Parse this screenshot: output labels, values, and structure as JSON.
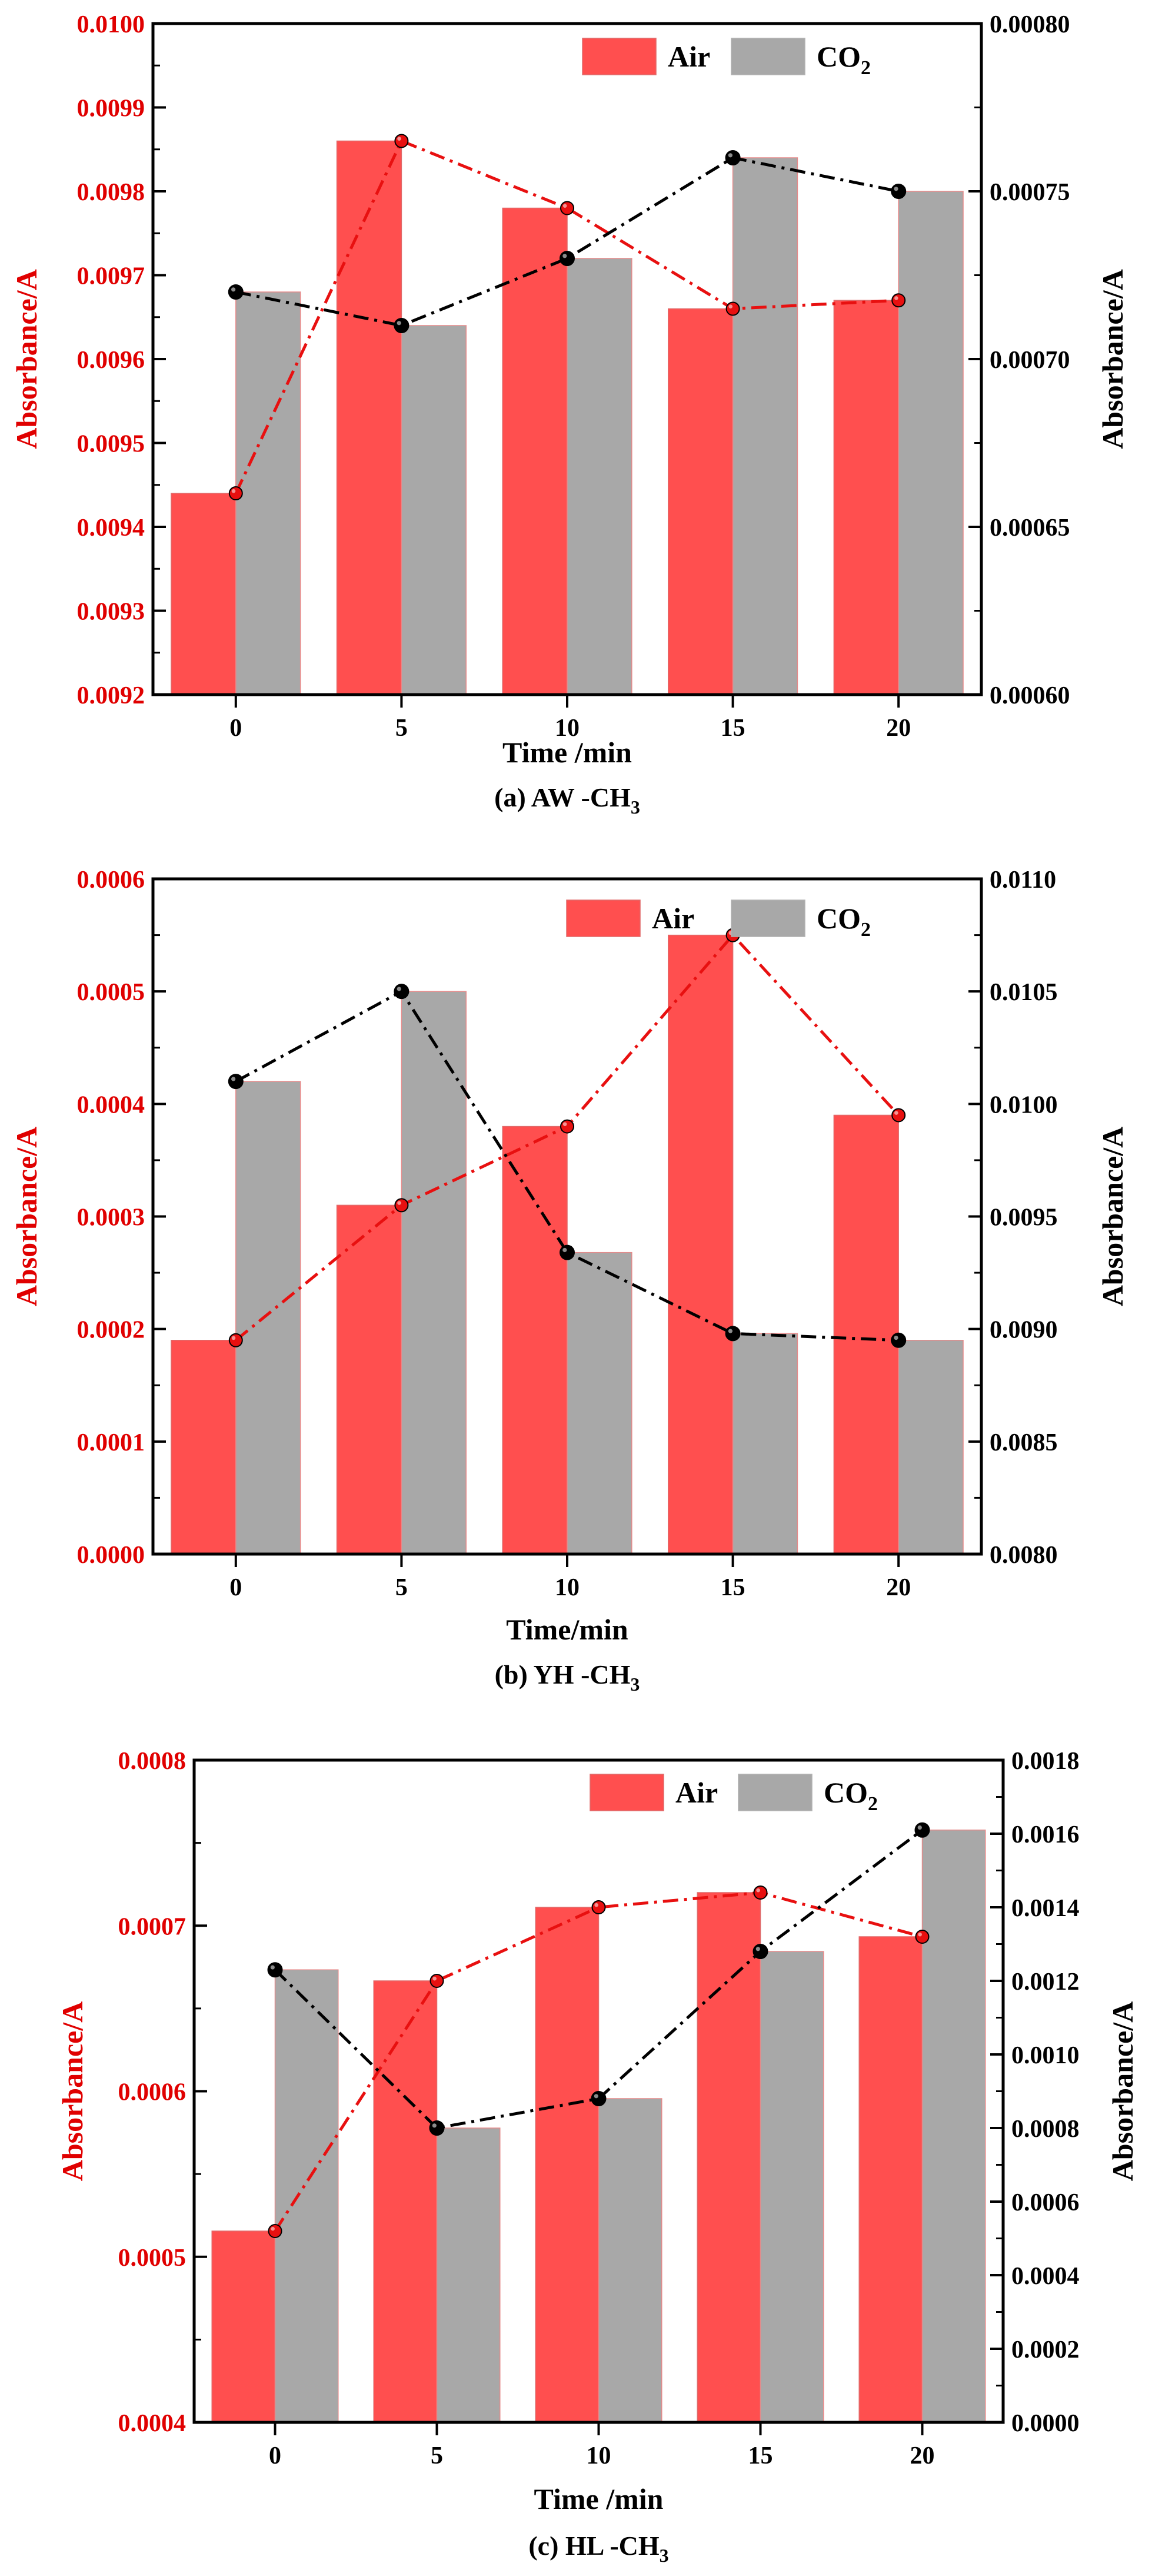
{
  "chart_data": [
    {
      "type": "bar",
      "caption": "(a) AW -CH",
      "caption_sub": "3",
      "categories": [
        "0",
        "5",
        "10",
        "15",
        "20"
      ],
      "xlabel": "Time /min",
      "ylabel_left": "Absorbance/A",
      "ylabel_right": "Absorbance/A",
      "ylim_left": [
        0.0092,
        0.01
      ],
      "ylim_right": [
        0.0006,
        0.0008
      ],
      "yticks_left": [
        "0.0092",
        "0.0093",
        "0.0094",
        "0.0095",
        "0.0096",
        "0.0097",
        "0.0098",
        "0.0099",
        "0.0100"
      ],
      "yticks_right": [
        "0.00060",
        "0.00065",
        "0.00070",
        "0.00075",
        "0.00080"
      ],
      "series": [
        {
          "name": "Air",
          "axis": "left",
          "values": [
            0.00944,
            0.00986,
            0.00978,
            0.00966,
            0.00967
          ]
        },
        {
          "name": "CO",
          "name_sub": "2",
          "axis": "right",
          "values": [
            0.00072,
            0.00071,
            0.00073,
            0.00076,
            0.00075
          ]
        }
      ],
      "line_series": [
        {
          "axis": "left",
          "values": [
            0.00944,
            0.00986,
            0.00978,
            0.00966,
            0.00967
          ]
        },
        {
          "axis": "right",
          "values": [
            0.00072,
            0.00071,
            0.00073,
            0.00076,
            0.00075
          ]
        }
      ],
      "legend": "top-right",
      "grid": false
    },
    {
      "type": "bar",
      "caption": "(b) YH  -CH",
      "caption_sub": "3",
      "categories": [
        "0",
        "5",
        "10",
        "15",
        "20"
      ],
      "xlabel": "Time/min",
      "ylabel_left": "Absorbance/A",
      "ylabel_right": "Absorbance/A",
      "ylim_left": [
        0.0,
        0.0006
      ],
      "ylim_right": [
        0.008,
        0.011
      ],
      "yticks_left": [
        "0.0000",
        "0.0001",
        "0.0002",
        "0.0003",
        "0.0004",
        "0.0005",
        "0.0006"
      ],
      "yticks_right": [
        "0.0080",
        "0.0085",
        "0.0090",
        "0.0095",
        "0.0100",
        "0.0105",
        "0.0110"
      ],
      "series": [
        {
          "name": "Air",
          "axis": "left",
          "values": [
            0.00019,
            0.00031,
            0.00038,
            0.00055,
            0.00039
          ]
        },
        {
          "name": "CO",
          "name_sub": "2",
          "axis": "right",
          "values": [
            0.0101,
            0.0105,
            0.00934,
            0.00898,
            0.00895
          ]
        }
      ],
      "line_series": [
        {
          "axis": "left",
          "values": [
            0.00019,
            0.00031,
            0.00038,
            0.00055,
            0.00039
          ]
        },
        {
          "axis": "right",
          "values": [
            0.0101,
            0.0105,
            0.00934,
            0.00898,
            0.00895
          ]
        }
      ],
      "legend": "top-right",
      "grid": false
    },
    {
      "type": "bar",
      "caption": "(c) HL -CH",
      "caption_sub": "3",
      "categories": [
        "0",
        "5",
        "10",
        "15",
        "20"
      ],
      "xlabel": "Time /min",
      "ylabel_left": "Absorbance/A",
      "ylabel_right": "Absorbance/A",
      "ylim_left": [
        0.0004,
        0.00085
      ],
      "ylim_right": [
        0.0,
        0.0018
      ],
      "yticks_left": [
        "0.0004",
        "0.0005",
        "0.0006",
        "0.0007",
        "0.0008"
      ],
      "yticks_right": [
        "0.0000",
        "0.0002",
        "0.0004",
        "0.0006",
        "0.0008",
        "0.0010",
        "0.0012",
        "0.0014",
        "0.0016",
        "0.0018"
      ],
      "series": [
        {
          "name": "Air",
          "axis": "left",
          "values": [
            0.00053,
            0.0007,
            0.00075,
            0.00076,
            0.00073
          ]
        },
        {
          "name": "CO",
          "name_sub": "2",
          "axis": "right",
          "values": [
            0.00123,
            0.0008,
            0.00088,
            0.00128,
            0.00161
          ]
        }
      ],
      "line_series": [
        {
          "axis": "left",
          "values": [
            0.00053,
            0.0007,
            0.00075,
            0.00076,
            0.00073
          ]
        },
        {
          "axis": "right",
          "values": [
            0.00123,
            0.0008,
            0.00088,
            0.00128,
            0.00161
          ]
        }
      ],
      "legend": "top-right",
      "grid": false
    }
  ],
  "colors": {
    "air_bar": "#ff4f4f",
    "air_line": "#e81010",
    "co2_bar": "#a8a8a8",
    "co2_line": "#000000",
    "left_axis_text": "#e00000",
    "right_axis_text": "#000000"
  }
}
